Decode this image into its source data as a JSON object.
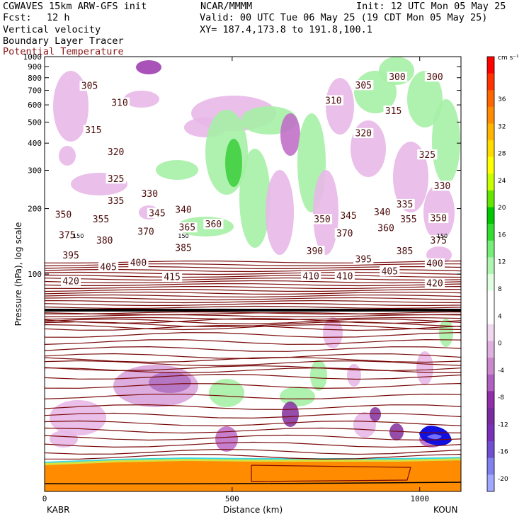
{
  "header": {
    "model": "CGWAVES 15km ARW-GFS init",
    "center": "NCAR/MMMM",
    "init": "Init: 12 UTC Mon 05 May 25",
    "fcst_label": "Fcst:",
    "fcst_value": "12 h",
    "valid": "Valid: 00 UTC Tue 06 May 25 (19 CDT Mon 05 May 25)",
    "field1": "Vertical velocity",
    "field2": "Boundary Layer Tracer",
    "field3": "Potential Temperature",
    "xy": "XY= 187.4,173.8 to 191.8,100.1",
    "field3_color": "#8b1a1a"
  },
  "chart_data": {
    "type": "cross-section",
    "ylabel": "Pressure (hPa), log scale",
    "xlabel": "Distance (km)",
    "y_scale": "log",
    "ylim": [
      1000,
      10
    ],
    "xlim": [
      0,
      1110
    ],
    "y_ticks": [
      100,
      200,
      300,
      400,
      500,
      600,
      700,
      800,
      900,
      1000
    ],
    "x_ticks": [
      0,
      500,
      1000
    ],
    "endpoint_left": "KABR",
    "endpoint_right": "KOUN",
    "theta_labels": [
      {
        "text": "420",
        "x": 70,
        "p": 93
      },
      {
        "text": "415",
        "x": 340,
        "p": 97
      },
      {
        "text": "410",
        "x": 710,
        "p": 98
      },
      {
        "text": "410",
        "x": 800,
        "p": 98
      },
      {
        "text": "420",
        "x": 1040,
        "p": 91
      },
      {
        "text": "405",
        "x": 170,
        "p": 108
      },
      {
        "text": "405",
        "x": 920,
        "p": 103
      },
      {
        "text": "395",
        "x": 70,
        "p": 122
      },
      {
        "text": "400",
        "x": 250,
        "p": 113
      },
      {
        "text": "400",
        "x": 1040,
        "p": 112
      },
      {
        "text": "395",
        "x": 850,
        "p": 117
      },
      {
        "text": "385",
        "x": 370,
        "p": 132
      },
      {
        "text": "390",
        "x": 720,
        "p": 128
      },
      {
        "text": "385",
        "x": 960,
        "p": 128
      },
      {
        "text": "380",
        "x": 160,
        "p": 143
      },
      {
        "text": "375",
        "x": 60,
        "p": 151
      },
      {
        "text": "375",
        "x": 1050,
        "p": 143
      },
      {
        "text": "370",
        "x": 270,
        "p": 157
      },
      {
        "text": "370",
        "x": 800,
        "p": 154
      },
      {
        "text": "365",
        "x": 380,
        "p": 164
      },
      {
        "text": "360",
        "x": 450,
        "p": 170
      },
      {
        "text": "360",
        "x": 910,
        "p": 163
      },
      {
        "text": "355",
        "x": 150,
        "p": 179
      },
      {
        "text": "350",
        "x": 50,
        "p": 188
      },
      {
        "text": "350",
        "x": 740,
        "p": 179
      },
      {
        "text": "345",
        "x": 300,
        "p": 191
      },
      {
        "text": "345",
        "x": 810,
        "p": 186
      },
      {
        "text": "355",
        "x": 970,
        "p": 179
      },
      {
        "text": "350",
        "x": 1050,
        "p": 181
      },
      {
        "text": "340",
        "x": 370,
        "p": 198
      },
      {
        "text": "340",
        "x": 900,
        "p": 193
      },
      {
        "text": "335",
        "x": 190,
        "p": 218
      },
      {
        "text": "335",
        "x": 960,
        "p": 210
      },
      {
        "text": "330",
        "x": 280,
        "p": 235
      },
      {
        "text": "330",
        "x": 1060,
        "p": 255
      },
      {
        "text": "325",
        "x": 190,
        "p": 275
      },
      {
        "text": "325",
        "x": 1020,
        "p": 355
      },
      {
        "text": "320",
        "x": 190,
        "p": 365
      },
      {
        "text": "320",
        "x": 850,
        "p": 445
      },
      {
        "text": "315",
        "x": 130,
        "p": 460
      },
      {
        "text": "315",
        "x": 930,
        "p": 565
      },
      {
        "text": "310",
        "x": 200,
        "p": 615
      },
      {
        "text": "310",
        "x": 770,
        "p": 630
      },
      {
        "text": "305",
        "x": 120,
        "p": 735
      },
      {
        "text": "305",
        "x": 850,
        "p": 740
      },
      {
        "text": "300",
        "x": 940,
        "p": 808
      },
      {
        "text": "300",
        "x": 1040,
        "p": 810
      }
    ],
    "tropopause_labels": [
      {
        "text": "150",
        "x": 90,
        "p": 150
      },
      {
        "text": "150",
        "x": 370,
        "p": 150
      },
      {
        "text": "150",
        "x": 1060,
        "p": 150
      }
    ],
    "colorbar": {
      "unit": "cm s⁻¹",
      "labels": [
        "36",
        "32",
        "28",
        "24",
        "20",
        "16",
        "12",
        "8",
        "4",
        "0",
        "-4",
        "-8",
        "-12",
        "-16",
        "-20"
      ]
    }
  }
}
